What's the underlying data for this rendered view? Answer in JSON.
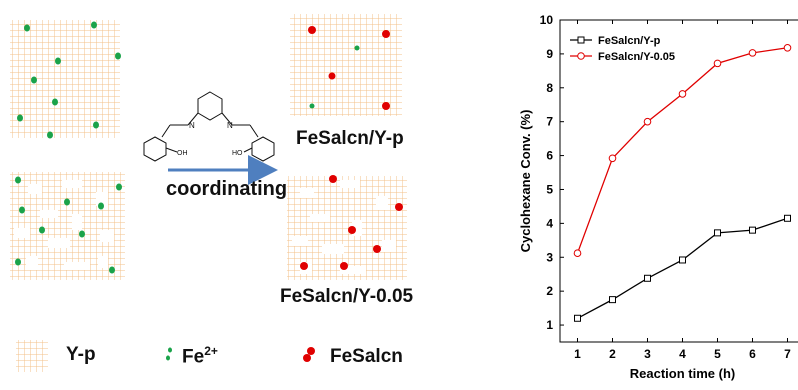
{
  "diagram": {
    "arrow_label": "coordinating",
    "product_labels": [
      "FeSalcn/Y-p",
      "FeSalcn/Y-0.05"
    ],
    "molecule_labels": [
      "N",
      "N",
      "OH",
      "HO"
    ],
    "legend": {
      "items": [
        {
          "label": "Y-p"
        },
        {
          "label": "Fe",
          "sup": "2+"
        },
        {
          "label": "FeSalcn"
        }
      ]
    },
    "colors": {
      "grid": "#f3c08a",
      "fe": "#1aa34a",
      "fesalcn": "#e00000",
      "arrow": "#4f7fbf"
    }
  },
  "chart_data": {
    "type": "line",
    "xlabel": "Reaction time (h)",
    "ylabel": "Cyclohexane Conv. (%)",
    "xlim": [
      1,
      7
    ],
    "ylim": [
      1,
      10
    ],
    "xticks": [
      "1",
      "2",
      "3",
      "4",
      "5",
      "6",
      "7"
    ],
    "yticks": [
      "1",
      "2",
      "3",
      "4",
      "5",
      "6",
      "7",
      "8",
      "9",
      "10"
    ],
    "legend_position": "top-left",
    "series": [
      {
        "name": "FeSalcn/Y-p",
        "color": "#000000",
        "marker": "square",
        "x": [
          1,
          2,
          3,
          4,
          5,
          6,
          7
        ],
        "values": [
          1.2,
          1.75,
          2.38,
          2.92,
          3.72,
          3.8,
          4.15
        ]
      },
      {
        "name": "FeSalcn/Y-0.05",
        "color": "#e00000",
        "marker": "circle",
        "x": [
          1,
          2,
          3,
          4,
          5,
          6,
          7
        ],
        "values": [
          3.12,
          5.92,
          7.0,
          7.82,
          8.72,
          9.03,
          9.18
        ]
      }
    ]
  }
}
